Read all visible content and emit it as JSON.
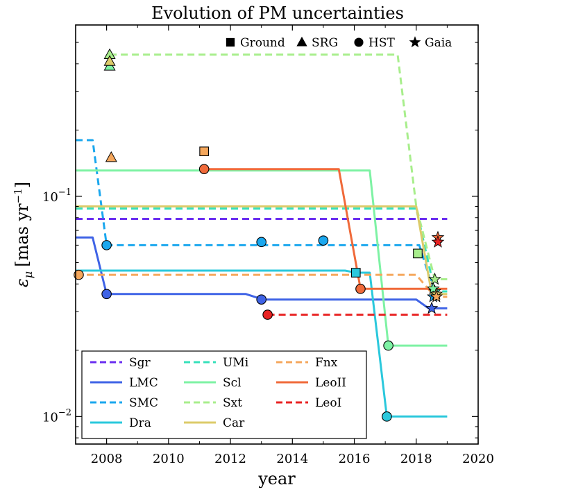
{
  "chart_data": {
    "type": "line",
    "title": "Evolution of PM uncertainties",
    "xlabel": "year",
    "ylabel": "ε_μ [mas yr⁻¹]",
    "ylabel_main": "ε",
    "ylabel_sub": "μ",
    "ylabel_units": "[mas yr",
    "ylabel_exp": "−1",
    "ylabel_close": "]",
    "xlim": [
      2007,
      2020
    ],
    "ylim": [
      0.0075,
      0.6
    ],
    "yscale": "log",
    "x_ticks": [
      2008,
      2010,
      2012,
      2014,
      2016,
      2018,
      2020
    ],
    "x_tick_labels": [
      "2008",
      "2010",
      "2012",
      "2014",
      "2016",
      "2018",
      "2020"
    ],
    "y_ticks": [
      {
        "value": 0.01,
        "base": "10",
        "exp": "−2"
      },
      {
        "value": 0.1,
        "base": "10",
        "exp": "−1"
      }
    ],
    "marker_key": [
      {
        "symbol": "square",
        "label": "Ground"
      },
      {
        "symbol": "triangle",
        "label": "SRG"
      },
      {
        "symbol": "circle",
        "label": "HST"
      },
      {
        "symbol": "star",
        "label": "Gaia"
      }
    ],
    "series": [
      {
        "name": "Sgr",
        "color": "#6a2ef0",
        "dash": "dashed",
        "line": [
          [
            2007.0,
            0.079
          ],
          [
            2019.0,
            0.079
          ]
        ],
        "markers": []
      },
      {
        "name": "LMC",
        "color": "#3f63e6",
        "dash": "solid",
        "line": [
          [
            2007.0,
            0.065
          ],
          [
            2007.55,
            0.065
          ],
          [
            2008.0,
            0.036
          ],
          [
            2012.5,
            0.036
          ],
          [
            2013.05,
            0.034
          ],
          [
            2018.0,
            0.034
          ],
          [
            2018.4,
            0.031
          ],
          [
            2019.0,
            0.031
          ]
        ],
        "markers": [
          {
            "x": 2008.0,
            "y": 0.036,
            "symbol": "circle"
          },
          {
            "x": 2013.0,
            "y": 0.034,
            "symbol": "circle"
          },
          {
            "x": 2018.5,
            "y": 0.031,
            "symbol": "star"
          }
        ]
      },
      {
        "name": "SMC",
        "color": "#1aa7ee",
        "dash": "dashed",
        "line": [
          [
            2007.0,
            0.18
          ],
          [
            2007.55,
            0.18
          ],
          [
            2008.0,
            0.06
          ],
          [
            2018.1,
            0.06
          ],
          [
            2018.6,
            0.036
          ],
          [
            2019.0,
            0.036
          ]
        ],
        "markers": [
          {
            "x": 2008.0,
            "y": 0.06,
            "symbol": "circle"
          },
          {
            "x": 2013.0,
            "y": 0.062,
            "symbol": "circle"
          },
          {
            "x": 2015.0,
            "y": 0.063,
            "symbol": "circle"
          },
          {
            "x": 2018.55,
            "y": 0.035,
            "symbol": "star"
          }
        ]
      },
      {
        "name": "Dra",
        "color": "#2ac8dc",
        "dash": "solid",
        "line": [
          [
            2007.0,
            0.046
          ],
          [
            2015.7,
            0.046
          ],
          [
            2016.05,
            0.045
          ],
          [
            2016.5,
            0.045
          ],
          [
            2017.05,
            0.01
          ],
          [
            2019.0,
            0.01
          ]
        ],
        "markers": [
          {
            "x": 2016.05,
            "y": 0.045,
            "symbol": "square"
          },
          {
            "x": 2017.05,
            "y": 0.01,
            "symbol": "circle"
          }
        ]
      },
      {
        "name": "UMi",
        "color": "#36e0bb",
        "dash": "dashed",
        "line": [
          [
            2007.0,
            0.088
          ],
          [
            2018.0,
            0.088
          ],
          [
            2018.6,
            0.037
          ],
          [
            2019.0,
            0.037
          ]
        ],
        "markers": [
          {
            "x": 2018.6,
            "y": 0.037,
            "symbol": "star"
          }
        ]
      },
      {
        "name": "Scl",
        "color": "#7ef2a4",
        "dash": "solid",
        "line": [
          [
            2007.0,
            0.131
          ],
          [
            2016.5,
            0.131
          ],
          [
            2017.1,
            0.021
          ],
          [
            2019.0,
            0.021
          ]
        ],
        "markers": [
          {
            "x": 2008.1,
            "y": 0.39,
            "symbol": "triangle"
          },
          {
            "x": 2017.1,
            "y": 0.021,
            "symbol": "circle"
          },
          {
            "x": 2018.55,
            "y": 0.038,
            "symbol": "star"
          }
        ]
      },
      {
        "name": "Sxt",
        "color": "#a8ee8c",
        "dash": "dashed",
        "line": [
          [
            2008.1,
            0.44
          ],
          [
            2017.4,
            0.44
          ],
          [
            2018.0,
            0.09
          ],
          [
            2018.6,
            0.042
          ],
          [
            2019.0,
            0.042
          ]
        ],
        "markers": [
          {
            "x": 2008.1,
            "y": 0.44,
            "symbol": "triangle"
          },
          {
            "x": 2018.05,
            "y": 0.055,
            "symbol": "square"
          },
          {
            "x": 2018.6,
            "y": 0.042,
            "symbol": "star"
          }
        ]
      },
      {
        "name": "Car",
        "color": "#dccb6a",
        "dash": "solid",
        "line": [
          [
            2007.0,
            0.09
          ],
          [
            2018.0,
            0.09
          ],
          [
            2018.5,
            0.036
          ],
          [
            2019.0,
            0.036
          ]
        ],
        "markers": [
          {
            "x": 2008.1,
            "y": 0.41,
            "symbol": "triangle"
          },
          {
            "x": 2018.65,
            "y": 0.036,
            "symbol": "star"
          }
        ]
      },
      {
        "name": "Fnx",
        "color": "#f5a75c",
        "dash": "dashed",
        "line": [
          [
            2007.0,
            0.044
          ],
          [
            2018.0,
            0.044
          ],
          [
            2018.6,
            0.035
          ],
          [
            2019.0,
            0.035
          ]
        ],
        "markers": [
          {
            "x": 2007.1,
            "y": 0.044,
            "symbol": "circle"
          },
          {
            "x": 2008.15,
            "y": 0.15,
            "symbol": "triangle"
          },
          {
            "x": 2011.15,
            "y": 0.16,
            "symbol": "square"
          },
          {
            "x": 2018.65,
            "y": 0.035,
            "symbol": "star"
          }
        ]
      },
      {
        "name": "LeoII",
        "color": "#f06a3a",
        "dash": "solid",
        "line": [
          [
            2011.2,
            0.133
          ],
          [
            2015.5,
            0.133
          ],
          [
            2016.2,
            0.038
          ],
          [
            2019.0,
            0.038
          ]
        ],
        "markers": [
          {
            "x": 2011.15,
            "y": 0.133,
            "symbol": "circle"
          },
          {
            "x": 2016.2,
            "y": 0.038,
            "symbol": "circle"
          },
          {
            "x": 2018.7,
            "y": 0.065,
            "symbol": "star"
          }
        ]
      },
      {
        "name": "LeoI",
        "color": "#e82222",
        "dash": "dashed",
        "line": [
          [
            2013.2,
            0.029
          ],
          [
            2019.0,
            0.029
          ]
        ],
        "markers": [
          {
            "x": 2013.2,
            "y": 0.029,
            "symbol": "circle"
          },
          {
            "x": 2018.7,
            "y": 0.062,
            "symbol": "star"
          }
        ]
      }
    ]
  }
}
